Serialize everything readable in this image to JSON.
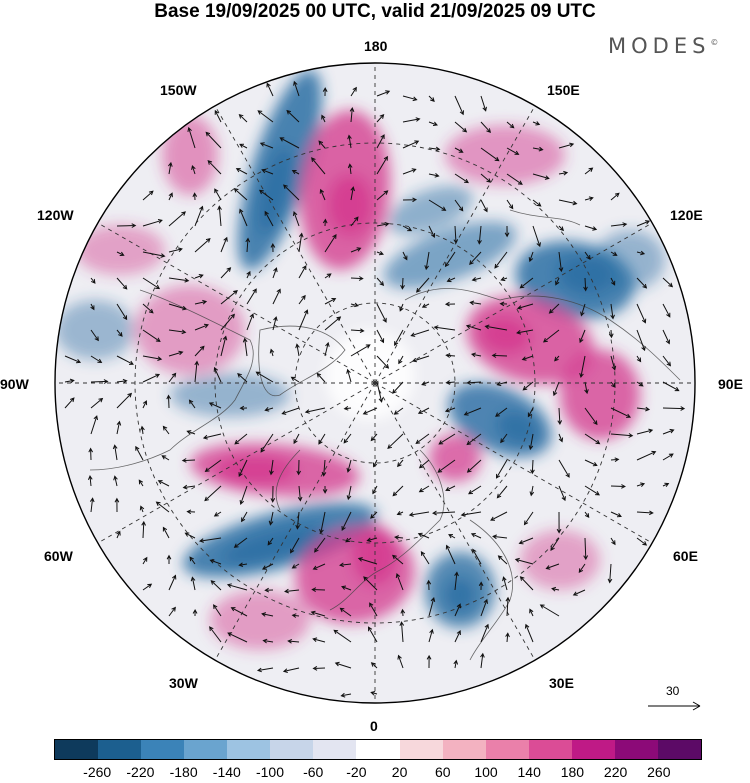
{
  "title": "Base 19/09/2025 00 UTC, valid 21/09/2025 09 UTC",
  "brand": "MODES",
  "brand_mark": "©",
  "longitude_labels": {
    "top": "180",
    "bottom": "0",
    "left": "90W",
    "right": "90E",
    "upper_left": "150W",
    "upper_right": "150E",
    "mid_left_upper": "120W",
    "mid_right_upper": "120E",
    "mid_left_lower": "60W",
    "mid_right_lower": "60E",
    "lower_left": "30W",
    "lower_right": "30E"
  },
  "wind_scale": {
    "value": "30"
  },
  "colorbar": {
    "ticks": [
      "-260",
      "-220",
      "-180",
      "-140",
      "-100",
      "-60",
      "-20",
      "20",
      "60",
      "100",
      "140",
      "180",
      "220",
      "260"
    ],
    "colors": [
      "#0e3a5c",
      "#1c5f8f",
      "#3b83b8",
      "#6aa4cf",
      "#9dc3e2",
      "#c7d5e9",
      "#e3e5f1",
      "#ffffff",
      "#f7d8dc",
      "#f3b2c1",
      "#ea80aa",
      "#db4c96",
      "#bf1a86",
      "#8c0a78",
      "#5c0a66"
    ]
  },
  "anomaly_colors": {
    "negative": "#2a6ea3",
    "positive": "#d43a8e"
  }
}
